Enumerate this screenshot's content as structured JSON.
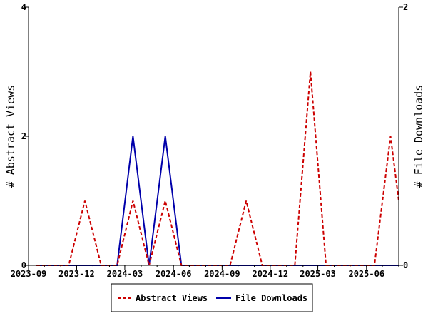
{
  "chart_data": {
    "type": "line",
    "title": "",
    "x_tick_labels": [
      "2023-09",
      "2023-12",
      "2024-03",
      "2024-06",
      "2024-09",
      "2024-12",
      "2025-03",
      "2025-06"
    ],
    "x_range": [
      "2023-09",
      "2025-08"
    ],
    "x_months": [
      "2023-09",
      "2023-10",
      "2023-11",
      "2023-12",
      "2024-01",
      "2024-02",
      "2024-03",
      "2024-04",
      "2024-05",
      "2024-06",
      "2024-07",
      "2024-08",
      "2024-09",
      "2024-10",
      "2024-11",
      "2024-12",
      "2025-01",
      "2025-02",
      "2025-03",
      "2025-04",
      "2025-05",
      "2025-06",
      "2025-07",
      "2025-08"
    ],
    "y_left": {
      "label": "# Abstract Views",
      "ticks": [
        "0",
        "2",
        "4"
      ],
      "range": [
        0,
        4
      ]
    },
    "y_right": {
      "label": "# File Downloads",
      "ticks": [
        "0",
        "2"
      ],
      "range": [
        0,
        2
      ]
    },
    "series": [
      {
        "name": "Abstract Views",
        "axis": "left",
        "color": "#cc0000",
        "dash": true,
        "values": [
          0,
          0,
          0,
          1,
          0,
          0,
          1,
          0,
          1,
          0,
          0,
          0,
          0,
          1,
          0,
          0,
          0,
          3,
          0,
          0,
          0,
          0,
          2,
          1
        ]
      },
      {
        "name": "File Downloads",
        "axis": "right",
        "color": "#0000aa",
        "dash": false,
        "values": [
          0,
          0,
          0,
          0,
          0,
          0,
          1,
          0,
          1,
          0,
          0,
          0,
          0,
          0,
          0,
          0,
          0,
          0,
          0,
          0,
          0,
          0,
          0,
          0
        ]
      }
    ],
    "legend_position": "bottom",
    "grid": false
  }
}
